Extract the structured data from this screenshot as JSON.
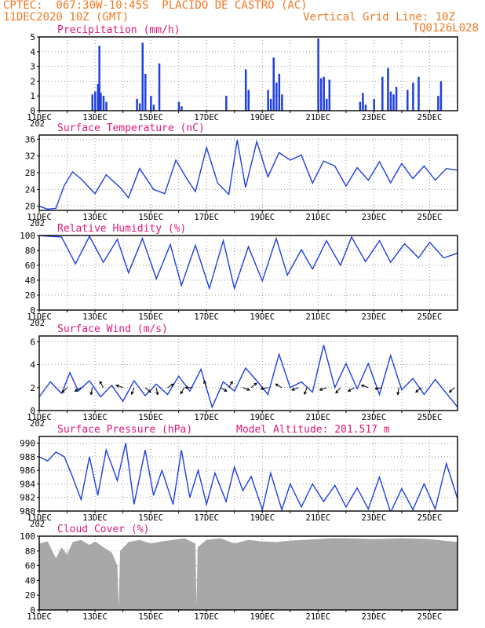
{
  "header": {
    "line1_left": "CPTEC:  067:30W-10:45S  PLACIDO DE CASTRO (AC)",
    "line2_left": "11DEC2020 10Z (GMT)",
    "line2_right": "Vertical Grid Line: 10Z",
    "line3_right": "TQ0126L028"
  },
  "colors": {
    "header": "#f07820",
    "title": "#e0187a",
    "line": "#1f3fe0",
    "bar": "#1f3fe0",
    "cloud": "#a8a8a8",
    "arrow": "#000000"
  },
  "x_axis_dates": [
    "11DEC",
    "13DEC",
    "15DEC",
    "17DEC",
    "19DEC",
    "21DEC",
    "23DEC",
    "25DEC"
  ],
  "x_axis_year_fragment": "202",
  "chart_data": [
    {
      "type": "bar",
      "title": "Precipitation (mm/h)",
      "ylim": [
        0,
        5
      ],
      "yticks": [
        "0",
        "1",
        "2",
        "3",
        "4",
        "5"
      ],
      "grid": true,
      "x_unit": "days since 11DEC2020 10Z",
      "x": [
        1.9,
        2.0,
        2.1,
        2.15,
        2.2,
        2.3,
        2.4,
        3.5,
        3.6,
        3.7,
        3.8,
        4.0,
        4.1,
        4.3,
        5.0,
        5.1,
        6.7,
        7.4,
        7.5,
        8.2,
        8.3,
        8.4,
        8.5,
        8.6,
        8.7,
        10.0,
        10.1,
        10.2,
        10.3,
        10.4,
        11.5,
        11.6,
        11.7,
        12.0,
        12.3,
        12.5,
        12.6,
        12.7,
        12.8,
        13.2,
        13.4,
        13.6,
        14.3,
        14.4
      ],
      "values": [
        1.1,
        1.3,
        1.8,
        4.4,
        1.2,
        1.0,
        0.6,
        0.8,
        0.5,
        4.6,
        2.5,
        1.0,
        0.4,
        3.2,
        0.6,
        0.3,
        1.0,
        2.8,
        1.4,
        1.4,
        0.8,
        3.6,
        1.9,
        2.5,
        1.1,
        4.9,
        2.2,
        2.3,
        0.8,
        2.1,
        0.6,
        1.2,
        0.4,
        0.8,
        2.3,
        2.9,
        1.3,
        1.1,
        1.6,
        1.4,
        1.9,
        2.3,
        1.0,
        2.0
      ]
    },
    {
      "type": "line",
      "title": "Surface Temperature (nC)",
      "ylim": [
        19,
        37
      ],
      "yticks": [
        "20",
        "24",
        "28",
        "32",
        "36"
      ],
      "grid": true,
      "x_unit": "days since 11DEC2020 10Z",
      "x": [
        0,
        0.3,
        0.6,
        0.9,
        1.2,
        1.5,
        2.0,
        2.4,
        2.9,
        3.2,
        3.6,
        4.1,
        4.5,
        4.9,
        5.3,
        5.6,
        6.0,
        6.4,
        6.8,
        7.1,
        7.4,
        7.8,
        8.2,
        8.6,
        9.0,
        9.4,
        9.8,
        10.2,
        10.6,
        11.0,
        11.4,
        11.8,
        12.2,
        12.6,
        13.0,
        13.4,
        13.8,
        14.2,
        14.6,
        15.0
      ],
      "values": [
        20,
        19.3,
        19.5,
        25,
        28.2,
        26.5,
        23,
        27.5,
        24.5,
        22,
        29,
        24,
        23,
        31,
        26.5,
        23.5,
        34,
        25.5,
        22.8,
        35.8,
        24.5,
        35.4,
        27,
        32.8,
        31,
        32.2,
        25.5,
        30.8,
        29.6,
        24.8,
        29.2,
        26.2,
        30.6,
        25.6,
        30.2,
        26.6,
        29.6,
        26.2,
        29,
        28.6
      ]
    },
    {
      "type": "line",
      "title": "Relative Humidity (%)",
      "ylim": [
        0,
        100
      ],
      "yticks": [
        "0",
        "20",
        "40",
        "60",
        "80",
        "100"
      ],
      "grid": true,
      "x_unit": "days since 11DEC2020 10Z",
      "x": [
        0,
        0.3,
        0.8,
        1.3,
        1.8,
        2.3,
        2.8,
        3.2,
        3.7,
        4.2,
        4.7,
        5.1,
        5.6,
        6.1,
        6.6,
        7.0,
        7.5,
        8.0,
        8.5,
        8.9,
        9.4,
        9.8,
        10.3,
        10.8,
        11.2,
        11.7,
        12.2,
        12.6,
        13.1,
        13.6,
        14.0,
        14.5,
        14.9,
        15.0
      ],
      "values": [
        100,
        99,
        98,
        62,
        99,
        64,
        95,
        50,
        96,
        42,
        88,
        33,
        87,
        29,
        93,
        29,
        85,
        39,
        96,
        47,
        81,
        55,
        93,
        60,
        98,
        65,
        93,
        64,
        89,
        70,
        91,
        70,
        75,
        77
      ]
    },
    {
      "type": "line",
      "title": "Surface Wind (m/s)",
      "ylim": [
        0,
        6.5
      ],
      "yticks": [
        "0",
        "2",
        "4",
        "6"
      ],
      "grid": true,
      "x_unit": "days since 11DEC2020 10Z",
      "x": [
        0,
        0.4,
        0.8,
        1.1,
        1.4,
        1.8,
        2.2,
        2.6,
        3.0,
        3.4,
        3.8,
        4.2,
        4.6,
        5.0,
        5.4,
        5.8,
        6.2,
        6.6,
        7.0,
        7.4,
        7.8,
        8.2,
        8.6,
        9.0,
        9.4,
        9.8,
        10.2,
        10.6,
        11.0,
        11.4,
        11.8,
        12.2,
        12.6,
        13.0,
        13.4,
        13.8,
        14.2,
        14.6,
        15.0
      ],
      "values": [
        1.2,
        2.5,
        1.5,
        3.3,
        1.7,
        2.6,
        1.2,
        2.2,
        0.8,
        2.6,
        1.3,
        2.3,
        1.4,
        3.0,
        1.7,
        3.6,
        0.3,
        2.5,
        1.7,
        3.7,
        2.6,
        1.4,
        4.9,
        2.0,
        2.5,
        1.6,
        5.7,
        2.0,
        4.1,
        1.9,
        4.1,
        1.4,
        4.8,
        1.8,
        2.8,
        1.4,
        2.7,
        1.5,
        0.3
      ]
    },
    {
      "type": "line",
      "title": "Surface Pressure (hPa)",
      "annotation": "Model Altitude: 201.517 m",
      "ylim": [
        980,
        991
      ],
      "yticks": [
        "980",
        "982",
        "984",
        "986",
        "988",
        "990"
      ],
      "grid": true,
      "x_unit": "days since 11DEC2020 10Z",
      "x": [
        0,
        0.3,
        0.6,
        0.9,
        1.2,
        1.5,
        1.8,
        2.1,
        2.4,
        2.8,
        3.1,
        3.4,
        3.8,
        4.1,
        4.4,
        4.8,
        5.1,
        5.4,
        5.7,
        6.0,
        6.3,
        6.7,
        7.0,
        7.3,
        7.6,
        8.0,
        8.3,
        8.7,
        9.0,
        9.4,
        9.8,
        10.2,
        10.6,
        11.0,
        11.4,
        11.8,
        12.2,
        12.6,
        13.0,
        13.4,
        13.8,
        14.2,
        14.6,
        15.0
      ],
      "values": [
        988,
        987.4,
        988.7,
        988,
        985,
        981.7,
        988,
        982.3,
        989,
        984.5,
        990,
        981,
        989,
        982.3,
        986,
        981,
        989,
        982,
        986,
        981,
        985.6,
        981.4,
        986.5,
        983,
        985.1,
        980.2,
        985.6,
        980.2,
        984,
        980.6,
        984,
        981.4,
        983.8,
        980.6,
        983.4,
        980.3,
        985,
        979.8,
        983.3,
        980.2,
        984,
        980.3,
        987,
        981.8
      ]
    },
    {
      "type": "area",
      "title": "Cloud Cover (%)",
      "ylim": [
        0,
        100
      ],
      "yticks": [
        "0",
        "20",
        "40",
        "60",
        "80",
        "100"
      ],
      "grid": true,
      "x_unit": "days since 11DEC2020 10Z",
      "x": [
        0,
        0.3,
        0.6,
        0.8,
        1.0,
        1.2,
        1.5,
        1.8,
        2.0,
        2.3,
        2.6,
        2.8,
        2.85,
        2.9,
        3.2,
        3.6,
        4.0,
        4.4,
        4.8,
        5.2,
        5.6,
        5.64,
        5.68,
        6.0,
        6.5,
        7.0,
        7.5,
        8.0,
        8.5,
        9.0,
        9.5,
        10.0,
        10.5,
        11.0,
        12.0,
        13.0,
        14.0,
        15.0
      ],
      "values": [
        90,
        93,
        70,
        85,
        75,
        92,
        95,
        88,
        93,
        85,
        78,
        60,
        3,
        80,
        92,
        95,
        90,
        93,
        95,
        97,
        90,
        5,
        85,
        95,
        97,
        90,
        95,
        93,
        92,
        94,
        95,
        96,
        97,
        97,
        96,
        97,
        96,
        92
      ]
    }
  ]
}
